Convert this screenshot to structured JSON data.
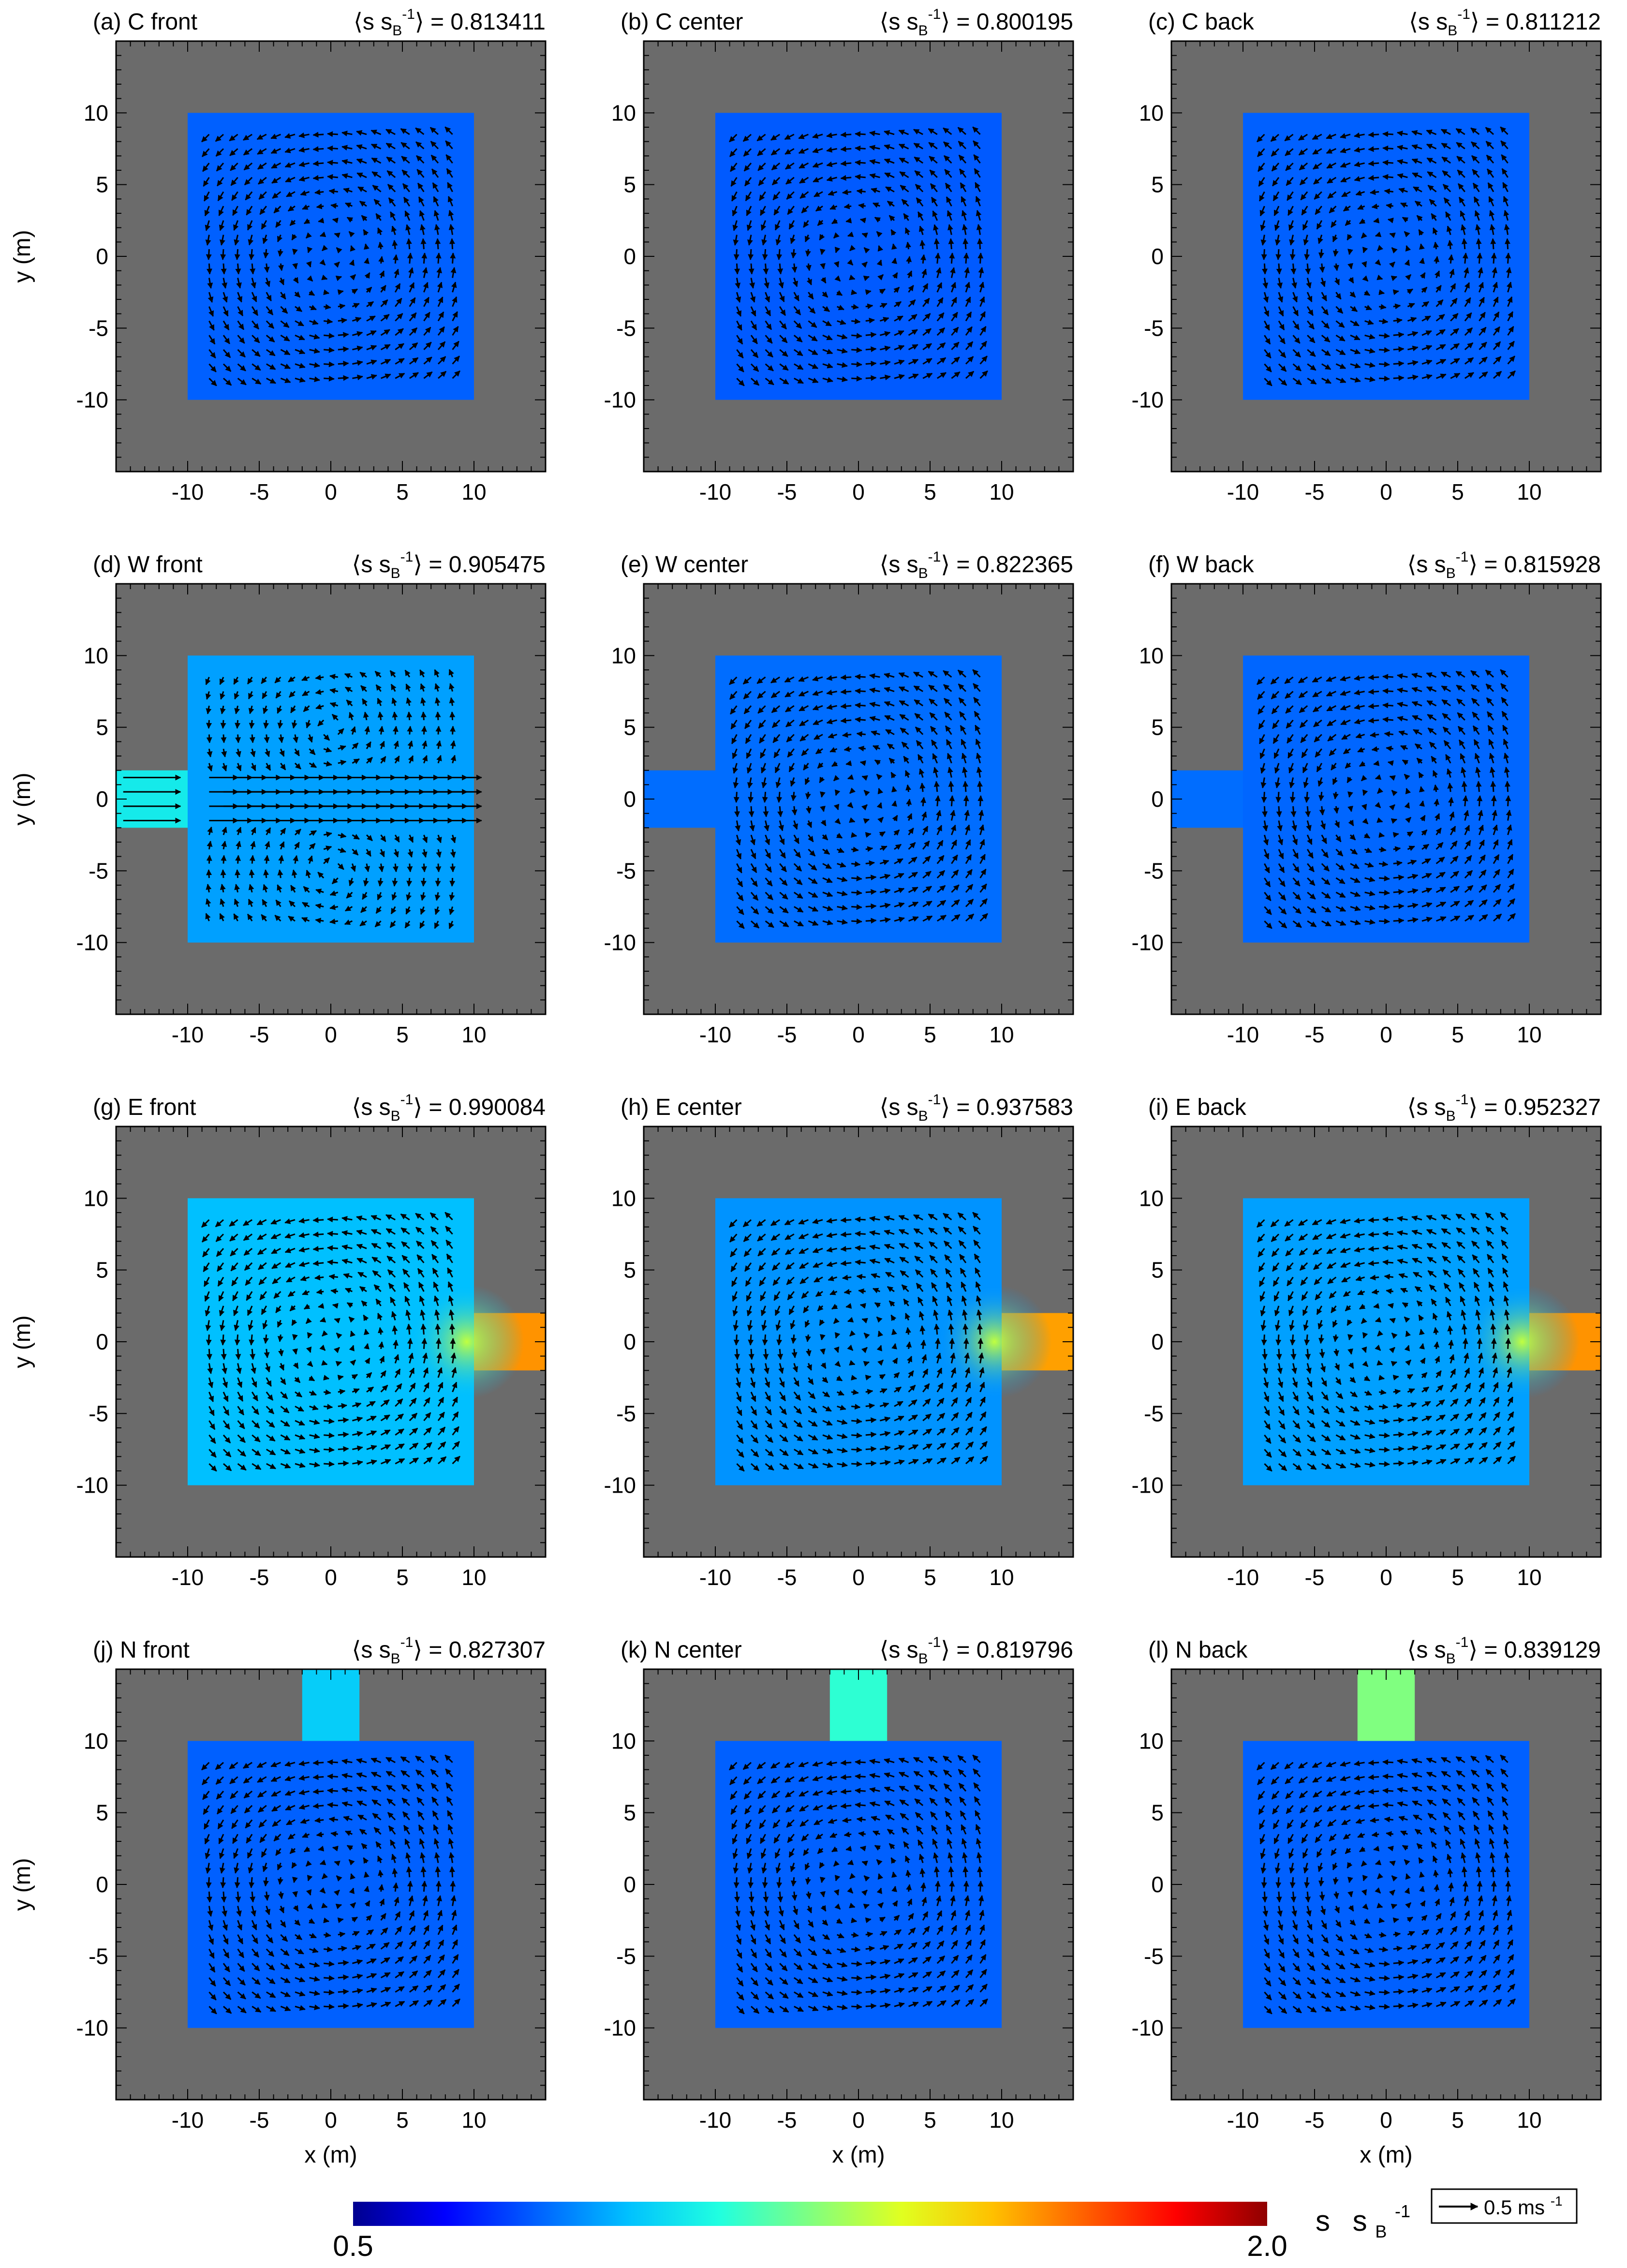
{
  "chart_data": {
    "type": "heatmap",
    "grid": {
      "rows": 4,
      "cols": 3
    },
    "xlabel": "x (m)",
    "ylabel": "y (m)",
    "xlim": [
      -15,
      15
    ],
    "ylim": [
      -15,
      15
    ],
    "xticks": [
      -10,
      -5,
      0,
      5,
      10
    ],
    "yticks": [
      10,
      5,
      0,
      -5,
      -10
    ],
    "colorbar": {
      "min_label": "0.5",
      "max_label": "2.0",
      "min": 0.5,
      "max": 2.0,
      "unit_main": "s",
      "unit_sub": "s",
      "unit_subscript": "B",
      "unit_superscript": "-1",
      "colors": [
        "#00008f",
        "#0000ff",
        "#0060ff",
        "#00c0ff",
        "#20ffe0",
        "#80ff80",
        "#e0ff20",
        "#ffc000",
        "#ff6000",
        "#ff0000",
        "#8f0000"
      ]
    },
    "reference_vector": {
      "label": "0.5 ms",
      "superscript": "-1"
    },
    "stat_prefix": "⟨s s",
    "stat_sub": "B",
    "stat_sup": "-1",
    "stat_suffix": "⟩ =",
    "panels": [
      {
        "label": "(a) C front",
        "mean": "0.813411",
        "inlet": "none",
        "inlet_value": 0,
        "room_value": 0.8
      },
      {
        "label": "(b) C center",
        "mean": "0.800195",
        "inlet": "none",
        "inlet_value": 0,
        "room_value": 0.79
      },
      {
        "label": "(c) C back",
        "mean": "0.811212",
        "inlet": "none",
        "inlet_value": 0,
        "room_value": 0.8
      },
      {
        "label": "(d) W front",
        "mean": "0.905475",
        "inlet": "west",
        "inlet_value": 1.05,
        "room_value": 0.9
      },
      {
        "label": "(e) W center",
        "mean": "0.822365",
        "inlet": "west",
        "inlet_value": 0.82,
        "room_value": 0.82
      },
      {
        "label": "(f) W back",
        "mean": "0.815928",
        "inlet": "west",
        "inlet_value": 0.82,
        "room_value": 0.81
      },
      {
        "label": "(g) E front",
        "mean": "0.990084",
        "inlet": "east",
        "inlet_value": 1.62,
        "room_value": 0.95
      },
      {
        "label": "(h) E center",
        "mean": "0.937583",
        "inlet": "east",
        "inlet_value": 1.6,
        "room_value": 0.88
      },
      {
        "label": "(i) E back",
        "mean": "0.952327",
        "inlet": "east",
        "inlet_value": 1.62,
        "room_value": 0.9
      },
      {
        "label": "(j) N front",
        "mean": "0.827307",
        "inlet": "north",
        "inlet_value": 0.98,
        "room_value": 0.8
      },
      {
        "label": "(k) N center",
        "mean": "0.819796",
        "inlet": "north",
        "inlet_value": 1.12,
        "room_value": 0.8
      },
      {
        "label": "(l) N back",
        "mean": "0.839129",
        "inlet": "north",
        "inlet_value": 1.25,
        "room_value": 0.8
      }
    ]
  }
}
